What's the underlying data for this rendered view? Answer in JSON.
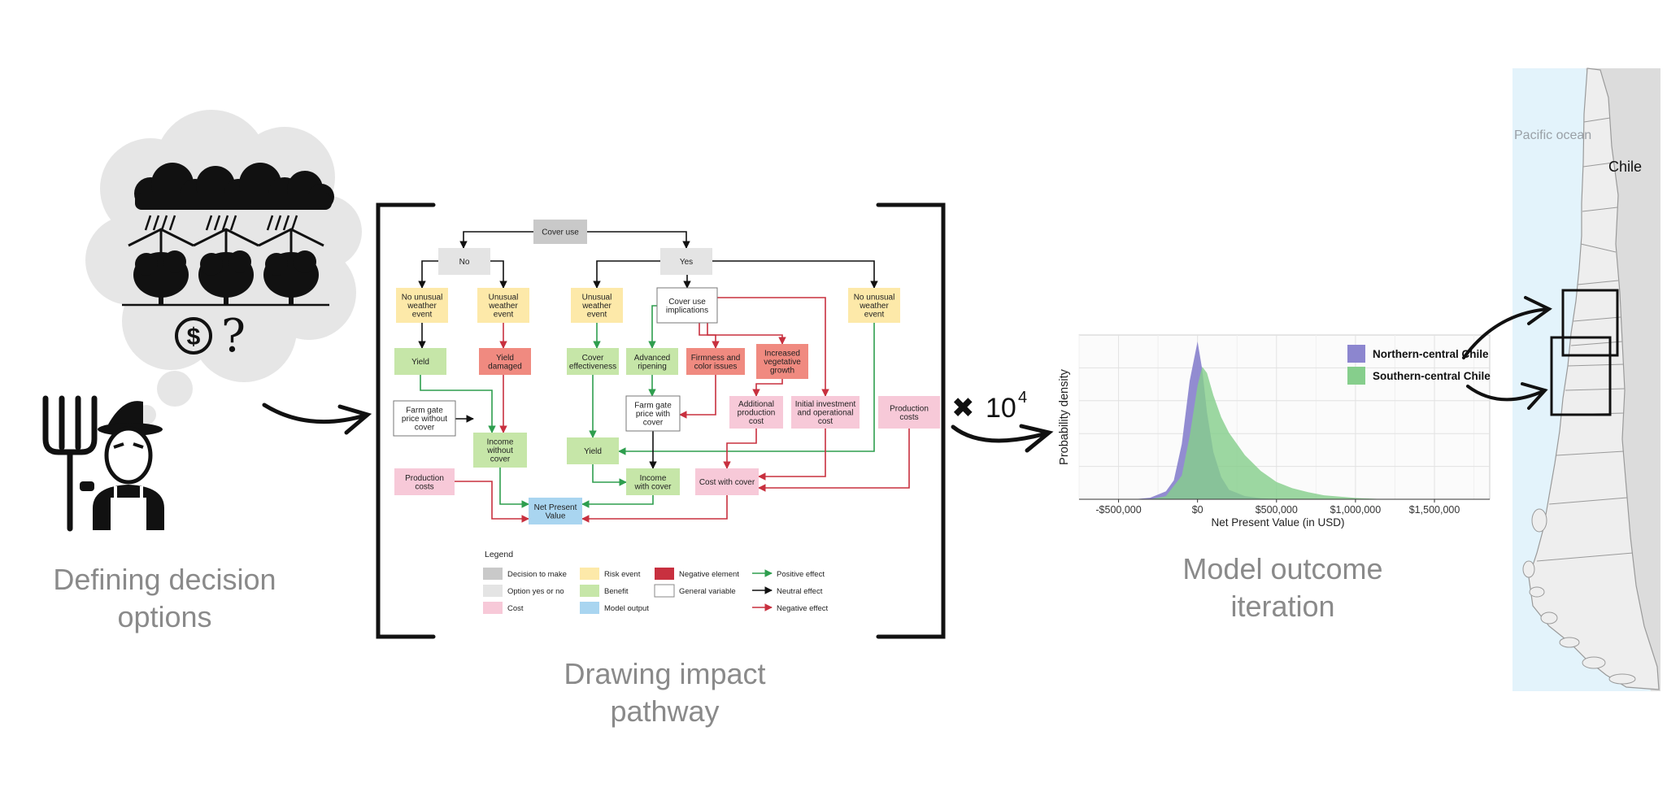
{
  "captions": {
    "left": [
      "Defining decision",
      "options"
    ],
    "middle": [
      "Drawing impact",
      "pathway"
    ],
    "right": [
      "Model outcome",
      "iteration"
    ]
  },
  "iterations": {
    "times_symbol": "✖",
    "base": "10",
    "exponent": "4"
  },
  "icons": [
    "rain-cloud-icon",
    "orchard-cover-icon",
    "tree-icon",
    "dollar-coin-icon",
    "question-mark-icon",
    "farmer-icon",
    "pitchfork-icon",
    "arrow-icon",
    "bracket-icon"
  ],
  "flowchart": {
    "nodes": [
      {
        "id": "cover_use",
        "label": [
          "Cover use"
        ],
        "type": "decision"
      },
      {
        "id": "no",
        "label": [
          "No"
        ],
        "type": "option"
      },
      {
        "id": "yes",
        "label": [
          "Yes"
        ],
        "type": "option"
      },
      {
        "id": "no_unusual_1",
        "label": [
          "No unusual",
          "weather",
          "event"
        ],
        "type": "risk"
      },
      {
        "id": "unusual_1",
        "label": [
          "Unusual",
          "weather",
          "event"
        ],
        "type": "risk"
      },
      {
        "id": "unusual_2",
        "label": [
          "Unusual",
          "weather",
          "event"
        ],
        "type": "risk"
      },
      {
        "id": "cover_impl",
        "label": [
          "Cover use",
          "implications"
        ],
        "type": "general"
      },
      {
        "id": "no_unusual_2",
        "label": [
          "No unusual",
          "weather",
          "event"
        ],
        "type": "risk"
      },
      {
        "id": "yield_1",
        "label": [
          "Yield"
        ],
        "type": "benefit"
      },
      {
        "id": "yield_damaged",
        "label": [
          "Yield",
          "damaged"
        ],
        "type": "negative"
      },
      {
        "id": "cover_eff",
        "label": [
          "Cover",
          "effectiveness"
        ],
        "type": "benefit"
      },
      {
        "id": "adv_ripening",
        "label": [
          "Advanced",
          "ripening"
        ],
        "type": "benefit"
      },
      {
        "id": "firmness",
        "label": [
          "Firmness and",
          "color issues"
        ],
        "type": "negative"
      },
      {
        "id": "veg_growth",
        "label": [
          "Increased",
          "vegetative",
          "growth"
        ],
        "type": "negative"
      },
      {
        "id": "fg_price_wo",
        "label": [
          "Farm gate",
          "price without",
          "cover"
        ],
        "type": "general"
      },
      {
        "id": "fg_price_w",
        "label": [
          "Farm gate",
          "price with",
          "cover"
        ],
        "type": "general"
      },
      {
        "id": "add_prod_cost",
        "label": [
          "Additional",
          "production",
          "cost"
        ],
        "type": "cost"
      },
      {
        "id": "init_invest",
        "label": [
          "Initial investment",
          "and operational",
          "cost"
        ],
        "type": "cost"
      },
      {
        "id": "prod_costs_r",
        "label": [
          "Production",
          "costs"
        ],
        "type": "cost"
      },
      {
        "id": "income_wo",
        "label": [
          "Income",
          "without",
          "cover"
        ],
        "type": "benefit"
      },
      {
        "id": "yield_2",
        "label": [
          "Yield"
        ],
        "type": "benefit"
      },
      {
        "id": "prod_costs_l",
        "label": [
          "Production",
          "costs"
        ],
        "type": "cost"
      },
      {
        "id": "income_w",
        "label": [
          "Income",
          "with cover"
        ],
        "type": "benefit"
      },
      {
        "id": "cost_w",
        "label": [
          "Cost with cover"
        ],
        "type": "cost"
      },
      {
        "id": "npv",
        "label": [
          "Net Present",
          "Value"
        ],
        "type": "output"
      }
    ],
    "legend": {
      "title": "Legend",
      "items": [
        {
          "label": "Decision to make",
          "kind": "box",
          "color": "#c9c9c9"
        },
        {
          "label": "Option yes or no",
          "kind": "box",
          "color": "#e4e4e4"
        },
        {
          "label": "Cost",
          "kind": "box",
          "color": "#f7c9d8"
        },
        {
          "label": "Risk event",
          "kind": "box",
          "color": "#fde9a9"
        },
        {
          "label": "Benefit",
          "kind": "box",
          "color": "#c6e6a8"
        },
        {
          "label": "Model output",
          "kind": "box",
          "color": "#a9d5f0"
        },
        {
          "label": "Negative element",
          "kind": "box",
          "color": "#c8303f"
        },
        {
          "label": "General variable",
          "kind": "box",
          "color": "#ffffff"
        },
        {
          "label": "Positive effect",
          "kind": "arrow",
          "color": "#2e9e4e"
        },
        {
          "label": "Neutral effect",
          "kind": "arrow",
          "color": "#111111"
        },
        {
          "label": "Negative effect",
          "kind": "arrow",
          "color": "#c8303f"
        }
      ]
    }
  },
  "chart_data": {
    "type": "area",
    "xlabel": "Net Present Value (in USD)",
    "ylabel": "Probability density",
    "x_ticks": [
      "-$500,000",
      "$0",
      "$500,000",
      "$1,000,000",
      "$1,500,000"
    ],
    "xlim": [
      -750000,
      1850000
    ],
    "legend_position": "top-right",
    "grid": true,
    "series": [
      {
        "name": "Northern-central Chile",
        "color": "#8c86cf",
        "x": [
          -400000,
          -300000,
          -200000,
          -150000,
          -100000,
          -50000,
          0,
          30000,
          60000,
          100000,
          150000,
          200000,
          300000,
          400000,
          500000,
          600000
        ],
        "y": [
          0.0,
          0.01,
          0.05,
          0.12,
          0.35,
          0.75,
          1.0,
          0.82,
          0.55,
          0.3,
          0.14,
          0.06,
          0.02,
          0.006,
          0.002,
          0.0
        ]
      },
      {
        "name": "Southern-central Chile",
        "color": "#86ce8c",
        "x": [
          -300000,
          -200000,
          -100000,
          -50000,
          0,
          30000,
          60000,
          100000,
          150000,
          200000,
          300000,
          400000,
          500000,
          600000,
          700000,
          800000,
          1000000,
          1200000
        ],
        "y": [
          0.0,
          0.02,
          0.15,
          0.4,
          0.72,
          0.84,
          0.8,
          0.66,
          0.52,
          0.42,
          0.28,
          0.18,
          0.11,
          0.07,
          0.045,
          0.025,
          0.008,
          0.0
        ]
      }
    ]
  },
  "map": {
    "ocean_label": "Pacific ocean",
    "country_label": "Chile",
    "colors": {
      "ocean": "#e3f3fb",
      "land": "#eeeeee",
      "neighbor": "#dcdcdc",
      "border": "#9a9a9a"
    }
  },
  "colors": {
    "positive": "#2e9e4e",
    "neutral": "#111111",
    "negative": "#c8303f",
    "caption": "#8a8a8a",
    "thought_bubble": "#e6e6e6"
  }
}
